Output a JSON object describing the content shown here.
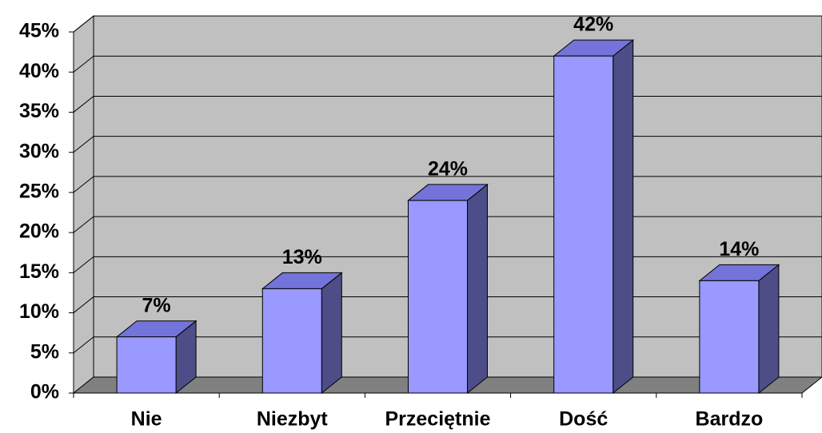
{
  "chart_data": {
    "type": "bar3d",
    "categories": [
      "Nie",
      "Niezbyt",
      "Przeciętnie",
      "Dość",
      "Bardzo"
    ],
    "values": [
      7,
      13,
      24,
      42,
      14
    ],
    "value_labels": [
      "7%",
      "13%",
      "24%",
      "42%",
      "14%"
    ],
    "color": "#9999ff",
    "ylim": [
      0,
      45
    ],
    "yticks": [
      {
        "value": 0,
        "label": "0%"
      },
      {
        "value": 5,
        "label": "5%"
      },
      {
        "value": 10,
        "label": "10%"
      },
      {
        "value": 15,
        "label": "15%"
      },
      {
        "value": 20,
        "label": "20%"
      },
      {
        "value": 25,
        "label": "25%"
      },
      {
        "value": 30,
        "label": "30%"
      },
      {
        "value": 35,
        "label": "35%"
      },
      {
        "value": 40,
        "label": "40%"
      },
      {
        "value": 45,
        "label": "45%"
      }
    ],
    "grid": true
  }
}
